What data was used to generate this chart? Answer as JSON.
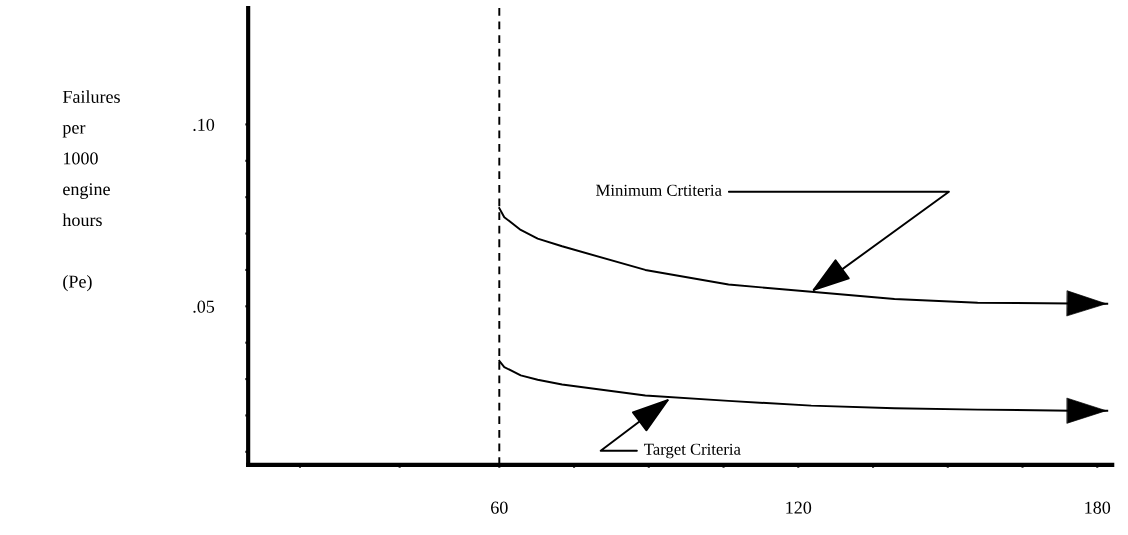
{
  "chart_data": {
    "type": "line",
    "ylabel": "Failures\nper\n1000\nengine\nhours\n\n(Pe)",
    "xlim": [
      9.6,
      183
    ],
    "ylim": [
      0.0064,
      0.132
    ],
    "xticks": [
      {
        "value": 20,
        "label": null
      },
      {
        "value": 40,
        "label": null
      },
      60,
      {
        "value": 75,
        "label": null
      },
      {
        "value": 90,
        "label": null
      },
      {
        "value": 105,
        "label": null
      },
      120,
      {
        "value": 135,
        "label": null
      },
      {
        "value": 150,
        "label": null
      },
      {
        "value": 165,
        "label": null
      },
      180
    ],
    "yticks": [
      {
        "value": 0.01,
        "label": null
      },
      {
        "value": 0.02,
        "label": null
      },
      {
        "value": 0.03,
        "label": null
      },
      {
        "value": 0.04,
        "label": null
      },
      {
        "value": 0.05,
        "label": ".05"
      },
      {
        "value": 0.06,
        "label": null
      },
      {
        "value": 0.07,
        "label": null
      },
      {
        "value": 0.08,
        "label": null
      },
      {
        "value": 0.09,
        "label": null
      },
      {
        "value": 0.1,
        "label": ".10"
      }
    ],
    "series": [
      {
        "color": "#000000",
        "line_style": "solid",
        "x": [
          60,
          61,
          64.3,
          67.7,
          72.6,
          89.3,
          106,
          122.6,
          139.3,
          156,
          175,
          182
        ],
        "values": [
          0.077,
          0.0745,
          0.071,
          0.0686,
          0.0665,
          0.06,
          0.056,
          0.054,
          0.052,
          0.051,
          0.0508,
          0.0507
        ]
      },
      {
        "color": "#000000",
        "line_style": "solid",
        "x": [
          60,
          61,
          64.3,
          67.7,
          72.6,
          89.3,
          106,
          122.6,
          139.3,
          156,
          175,
          182
        ],
        "values": [
          0.035,
          0.0333,
          0.031,
          0.0298,
          0.0285,
          0.0255,
          0.024,
          0.0227,
          0.022,
          0.0216,
          0.0213,
          0.0213
        ]
      }
    ],
    "ref_lines": [
      {
        "axis": "x",
        "value": 60,
        "color": "#000000",
        "line_style": "dashed"
      }
    ],
    "annotations": [
      {
        "text": "Minimum Crtiteria",
        "x": 122.6,
        "y": 0.054
      },
      {
        "text": "Target Criteria",
        "x": 94.3,
        "y": 0.0247
      }
    ]
  }
}
